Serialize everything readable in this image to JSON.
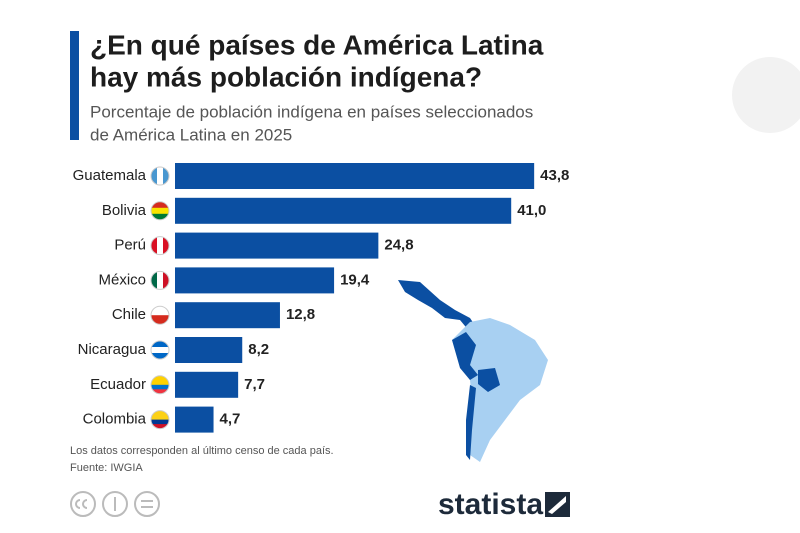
{
  "chart_data": {
    "type": "bar",
    "title": [
      "¿En qué países de América Latina",
      "hay más población indígena?"
    ],
    "subtitle": [
      "Porcentaje de población indígena en países seleccionados",
      "de América Latina en 2025"
    ],
    "categories": [
      "Guatemala",
      "Bolivia",
      "Perú",
      "México",
      "Chile",
      "Nicaragua",
      "Ecuador",
      "Colombia"
    ],
    "values": [
      43.8,
      41.0,
      24.8,
      19.4,
      12.8,
      8.2,
      7.7,
      4.7
    ],
    "value_labels": [
      "43,8",
      "41,0",
      "24,8",
      "19,4",
      "12,8",
      "8,2",
      "7,7",
      "4,7"
    ],
    "color": "#0b4fa2",
    "note": "Los datos corresponden al último censo de cada país.",
    "source": "Fuente: IWGIA",
    "logo": "statista"
  }
}
